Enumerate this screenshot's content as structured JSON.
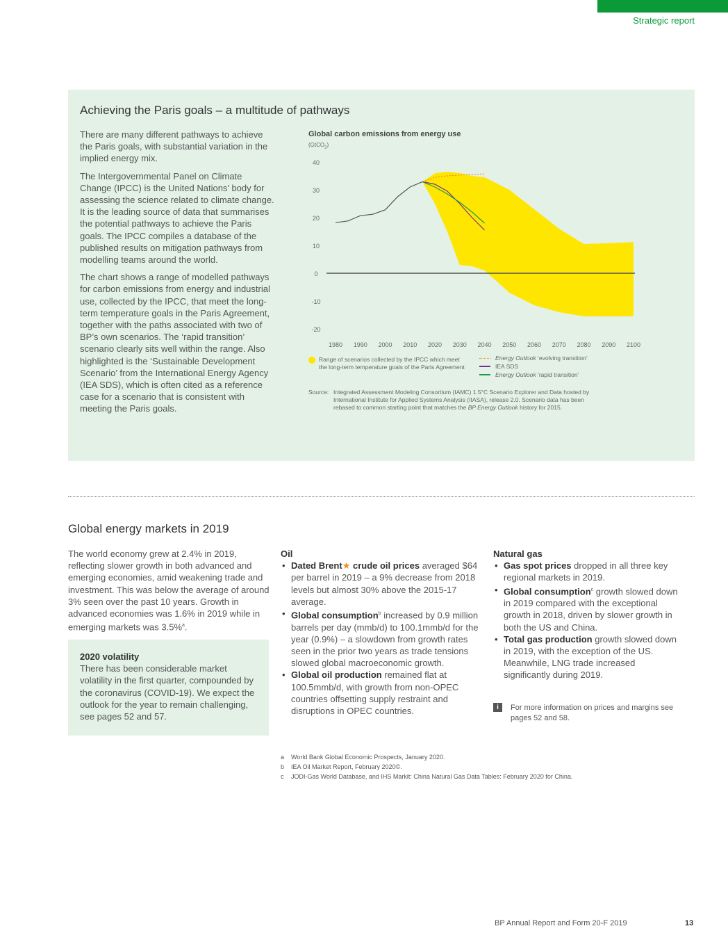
{
  "header": {
    "section": "Strategic report",
    "accent": "#0a9a38"
  },
  "paris": {
    "title": "Achieving the Paris goals – a multitude of pathways",
    "paragraphs": [
      "There are many different pathways to achieve the Paris goals, with substantial variation in the implied energy mix.",
      "The Intergovernmental Panel on Climate Change (IPCC) is the United Nations’ body for assessing the science related to climate change. It is the leading source of data that summarises the potential pathways to achieve the Paris goals. The IPCC compiles a database of the published results on mitigation pathways from modelling teams around the world.",
      "The chart shows a range of modelled pathways for carbon emissions from energy and industrial use, collected by the IPCC, that meet the long-term temperature goals in the Paris Agreement, together with the paths associated with two of BP’s own scenarios. The ‘rapid transition’ scenario clearly sits well within the range. Also highlighted is the ‘Sustainable Development Scenario’ from the International Energy Agency (IEA SDS), which is often cited as a reference case for a scenario that is consistent with meeting the Paris goals."
    ]
  },
  "chart_data": {
    "type": "line",
    "title": "Global carbon emissions from energy use",
    "unit": "(GtCO2)",
    "xlim": [
      1980,
      2100
    ],
    "ylim": [
      -20,
      40
    ],
    "xticks": [
      "1980",
      "1990",
      "2000",
      "2010",
      "2020",
      "2030",
      "2040",
      "2050",
      "2060",
      "2070",
      "2080",
      "2090",
      "2100"
    ],
    "yticks": [
      "40",
      "30",
      "20",
      "10",
      "0",
      "-10",
      "-20"
    ],
    "history": {
      "x": [
        1980,
        1985,
        1990,
        1995,
        2000,
        2005,
        2010,
        2015
      ],
      "y": [
        18.2,
        18.8,
        20.7,
        21.2,
        22.8,
        27.5,
        31,
        32.9
      ],
      "color": "#555555"
    },
    "range": {
      "name": "Range of scenarios collected by the IPCC which meet the long-term temperature goals of the Paris Agreement",
      "color": "#ffe600",
      "x": [
        2015,
        2020,
        2025,
        2030,
        2035,
        2040,
        2050,
        2060,
        2070,
        2080,
        2090,
        2100
      ],
      "upper": [
        32.9,
        35.9,
        36.5,
        36,
        35,
        34.5,
        30,
        23,
        16,
        10.5,
        10.8,
        11.2
      ],
      "lower": [
        32.9,
        25,
        15,
        3,
        2.5,
        1,
        -7,
        -11.5,
        -14,
        -15.5,
        -15.5,
        -15.5
      ]
    },
    "series": [
      {
        "name_italic": "Energy Outlook",
        "name": "‘evolving transition’",
        "color": "#f08a24",
        "dashed": true,
        "x": [
          2015,
          2020,
          2025,
          2030,
          2035,
          2040
        ],
        "y": [
          32.9,
          34.5,
          35,
          35.3,
          35.5,
          35.7
        ]
      },
      {
        "name_italic": "",
        "name": "IEA SDS",
        "color": "#7b2d8e",
        "dashed": false,
        "x": [
          2015,
          2020,
          2025,
          2030,
          2035,
          2040
        ],
        "y": [
          32.9,
          32,
          29.5,
          25,
          20,
          15.5
        ]
      },
      {
        "name_italic": "Energy Outlook",
        "name": "‘rapid transition’",
        "color": "#1f9a4a",
        "dashed": false,
        "x": [
          2015,
          2020,
          2025,
          2030,
          2035,
          2040
        ],
        "y": [
          32.9,
          31,
          28.5,
          25.5,
          22,
          18
        ]
      }
    ],
    "source_label": "Source:",
    "source": "Integrated Assessment Modeling Consortium (IAMC) 1.5°C Scenario Explorer and Data hosted by International Institute for Applied Systems Analysis (IIASA), release 2.0. Scenario data has been rebased to common starting point that matches the",
    "source_italic": "BP Energy Outlook",
    "source_end": "history for 2015."
  },
  "markets": {
    "title": "Global energy markets in 2019",
    "intro": "The world economy grew at 2.4% in 2019, reflecting slower growth in both advanced and emerging economies, amid weakening trade and investment. This was below the average of around 3% seen over the past 10 years. Growth in advanced economies was 1.6% in 2019 while in emerging markets was 3.5%",
    "intro_sup": "a",
    "volatility": {
      "title": "2020 volatility",
      "text": "There has been considerable market volatility in the first quarter, compounded by the coronavirus (COVID-19). We expect the outlook for the year to remain challenging, see pages 52 and 57."
    },
    "oil": {
      "title": "Oil",
      "items": [
        {
          "bold": "Dated Brent",
          "star": "★",
          "bold2": "crude oil prices",
          "text": "averaged $64 per barrel in 2019 – a 9% decrease from 2018 levels but almost 30% above the 2015-17 average."
        },
        {
          "bold": "Global consumption",
          "sup": "b",
          "text": "increased by 0.9 million barrels per day (mmb/d) to 100.1mmb/d for the year (0.9%) – a slowdown from growth rates seen in the prior two years as trade tensions slowed global macroeconomic growth."
        },
        {
          "bold": "Global oil production",
          "text": "remained flat at 100.5mmb/d, with growth from non-OPEC countries offsetting supply restraint and disruptions in OPEC countries."
        }
      ]
    },
    "gas": {
      "title": "Natural gas",
      "items": [
        {
          "bold": "Gas spot prices",
          "text": "dropped in all three key regional markets in 2019."
        },
        {
          "bold": "Global consumption",
          "sup": "c",
          "text": "growth slowed down in 2019 compared with the exceptional growth in 2018, driven by slower growth in both the US and China."
        },
        {
          "bold": "Total gas production",
          "text": "growth slowed down in 2019, with the exception of the US. Meanwhile, LNG trade increased significantly during 2019."
        }
      ]
    },
    "info_icon": "i",
    "info": "For more information on prices and margins see pages 52 and 58."
  },
  "footnotes": [
    {
      "letter": "a",
      "text": "World Bank Global Economic Prospects, January 2020."
    },
    {
      "letter": "b",
      "text": "IEA Oil Market Report, February 2020©."
    },
    {
      "letter": "c",
      "text": "JODI-Gas World Database, and IHS Markit: China Natural Gas Data Tables: February 2020 for China."
    }
  ],
  "footer": {
    "report": "BP Annual Report and Form 20-F 2019",
    "page": "13"
  }
}
